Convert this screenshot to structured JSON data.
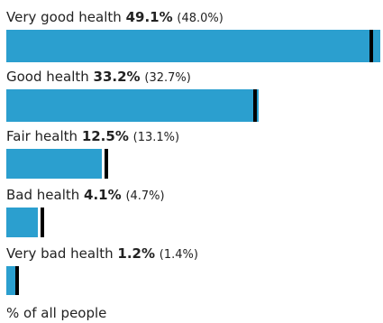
{
  "chart_data": {
    "type": "bar",
    "orientation": "horizontal",
    "categories": [
      "Very good health",
      "Good health",
      "Fair health",
      "Bad health",
      "Very bad health"
    ],
    "series": [
      {
        "values": [
          49.1,
          33.2,
          12.5,
          4.1,
          1.2
        ]
      },
      {
        "values": [
          48.0,
          32.7,
          13.1,
          4.7,
          1.4
        ],
        "style": "marker"
      }
    ],
    "value_labels": [
      "49.1%",
      "33.2%",
      "12.5%",
      "4.1%",
      "1.2%"
    ],
    "comparison_labels": [
      "(48.0%)",
      "(32.7%)",
      "(13.1%)",
      "(4.7%)",
      "(1.4%)"
    ],
    "xlim": [
      0,
      49.5
    ],
    "xlabel": "% of all people",
    "colors": {
      "bar": "#2b9fcf",
      "marker": "#000000"
    }
  }
}
